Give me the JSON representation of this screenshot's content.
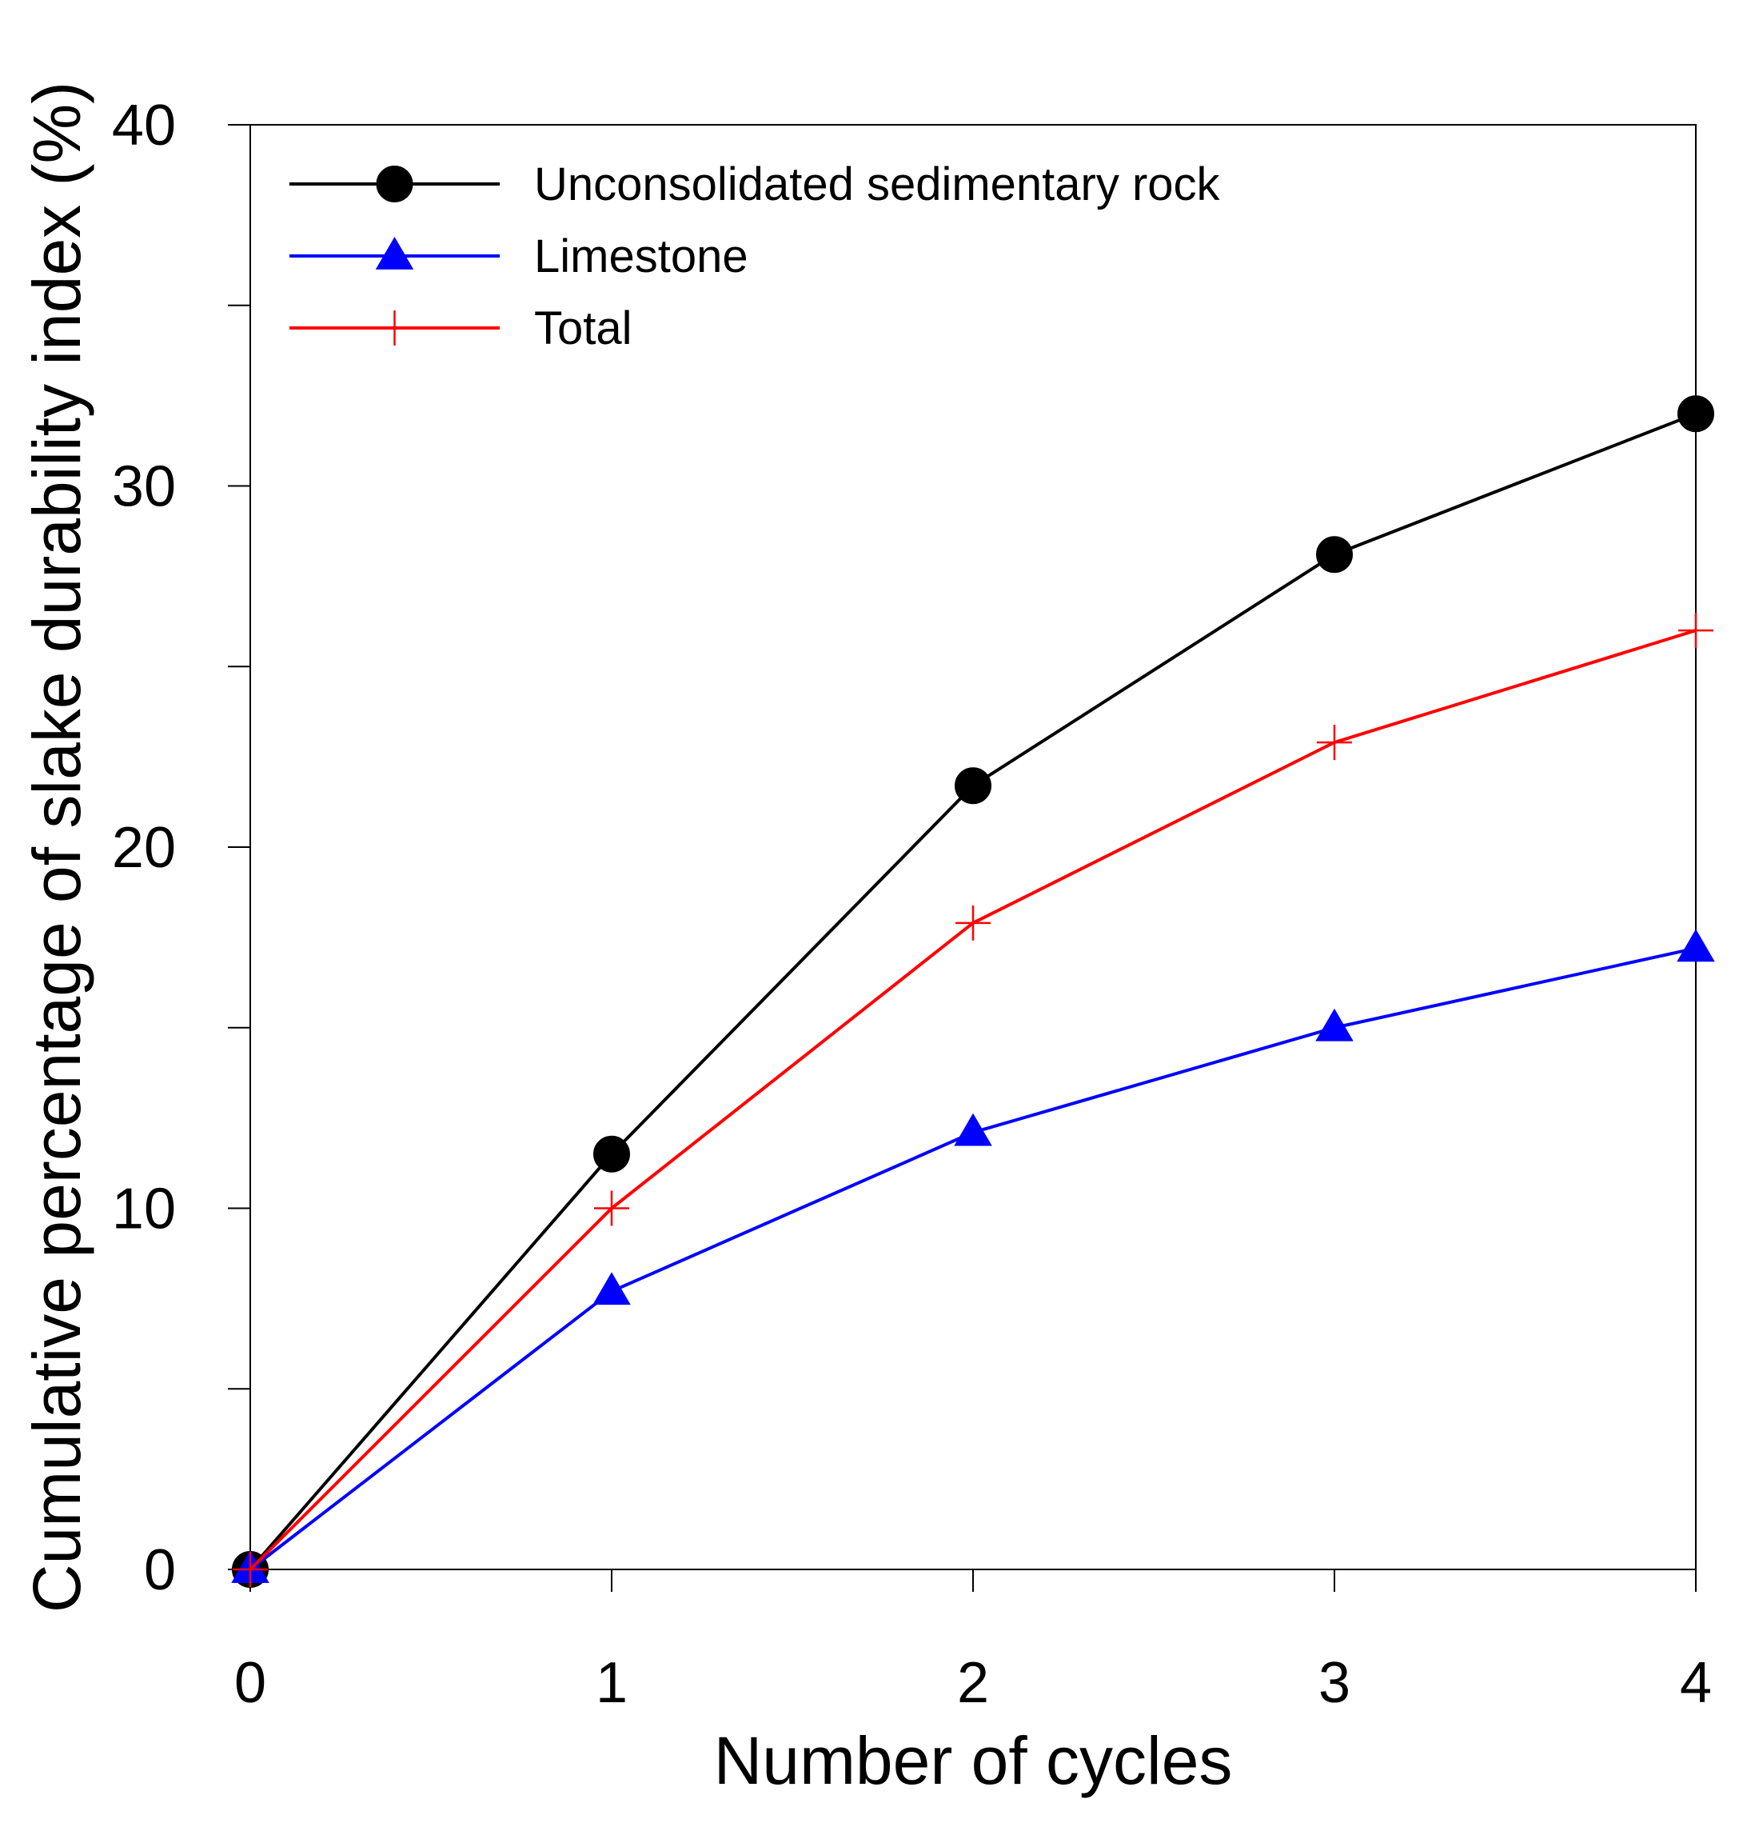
{
  "chart_data": {
    "type": "line",
    "title": "",
    "xlabel": "Number of cycles",
    "ylabel": "Cumulative percentage of slake durability index (%)",
    "xlim": [
      0,
      4
    ],
    "ylim": [
      0,
      40
    ],
    "x_ticks": [
      0,
      1,
      2,
      3,
      4
    ],
    "y_ticks": [
      0,
      10,
      20,
      30,
      40
    ],
    "y_minor_ticks": [
      5,
      15,
      25,
      35
    ],
    "grid": false,
    "legend_position": "top-left",
    "x": [
      0,
      1,
      2,
      3,
      4
    ],
    "series": [
      {
        "name": "Unconsolidated sedimentary rock",
        "values": [
          0,
          11.5,
          21.7,
          28.1,
          32
        ],
        "color": "#000000",
        "marker": "circle"
      },
      {
        "name": "Limestone",
        "values": [
          0,
          7.7,
          12.1,
          15.0,
          17.2
        ],
        "color": "#0000ff",
        "marker": "triangle"
      },
      {
        "name": "Total",
        "values": [
          0,
          10.0,
          17.9,
          22.9,
          26.0
        ],
        "color": "#ff0000",
        "marker": "cross"
      }
    ]
  }
}
